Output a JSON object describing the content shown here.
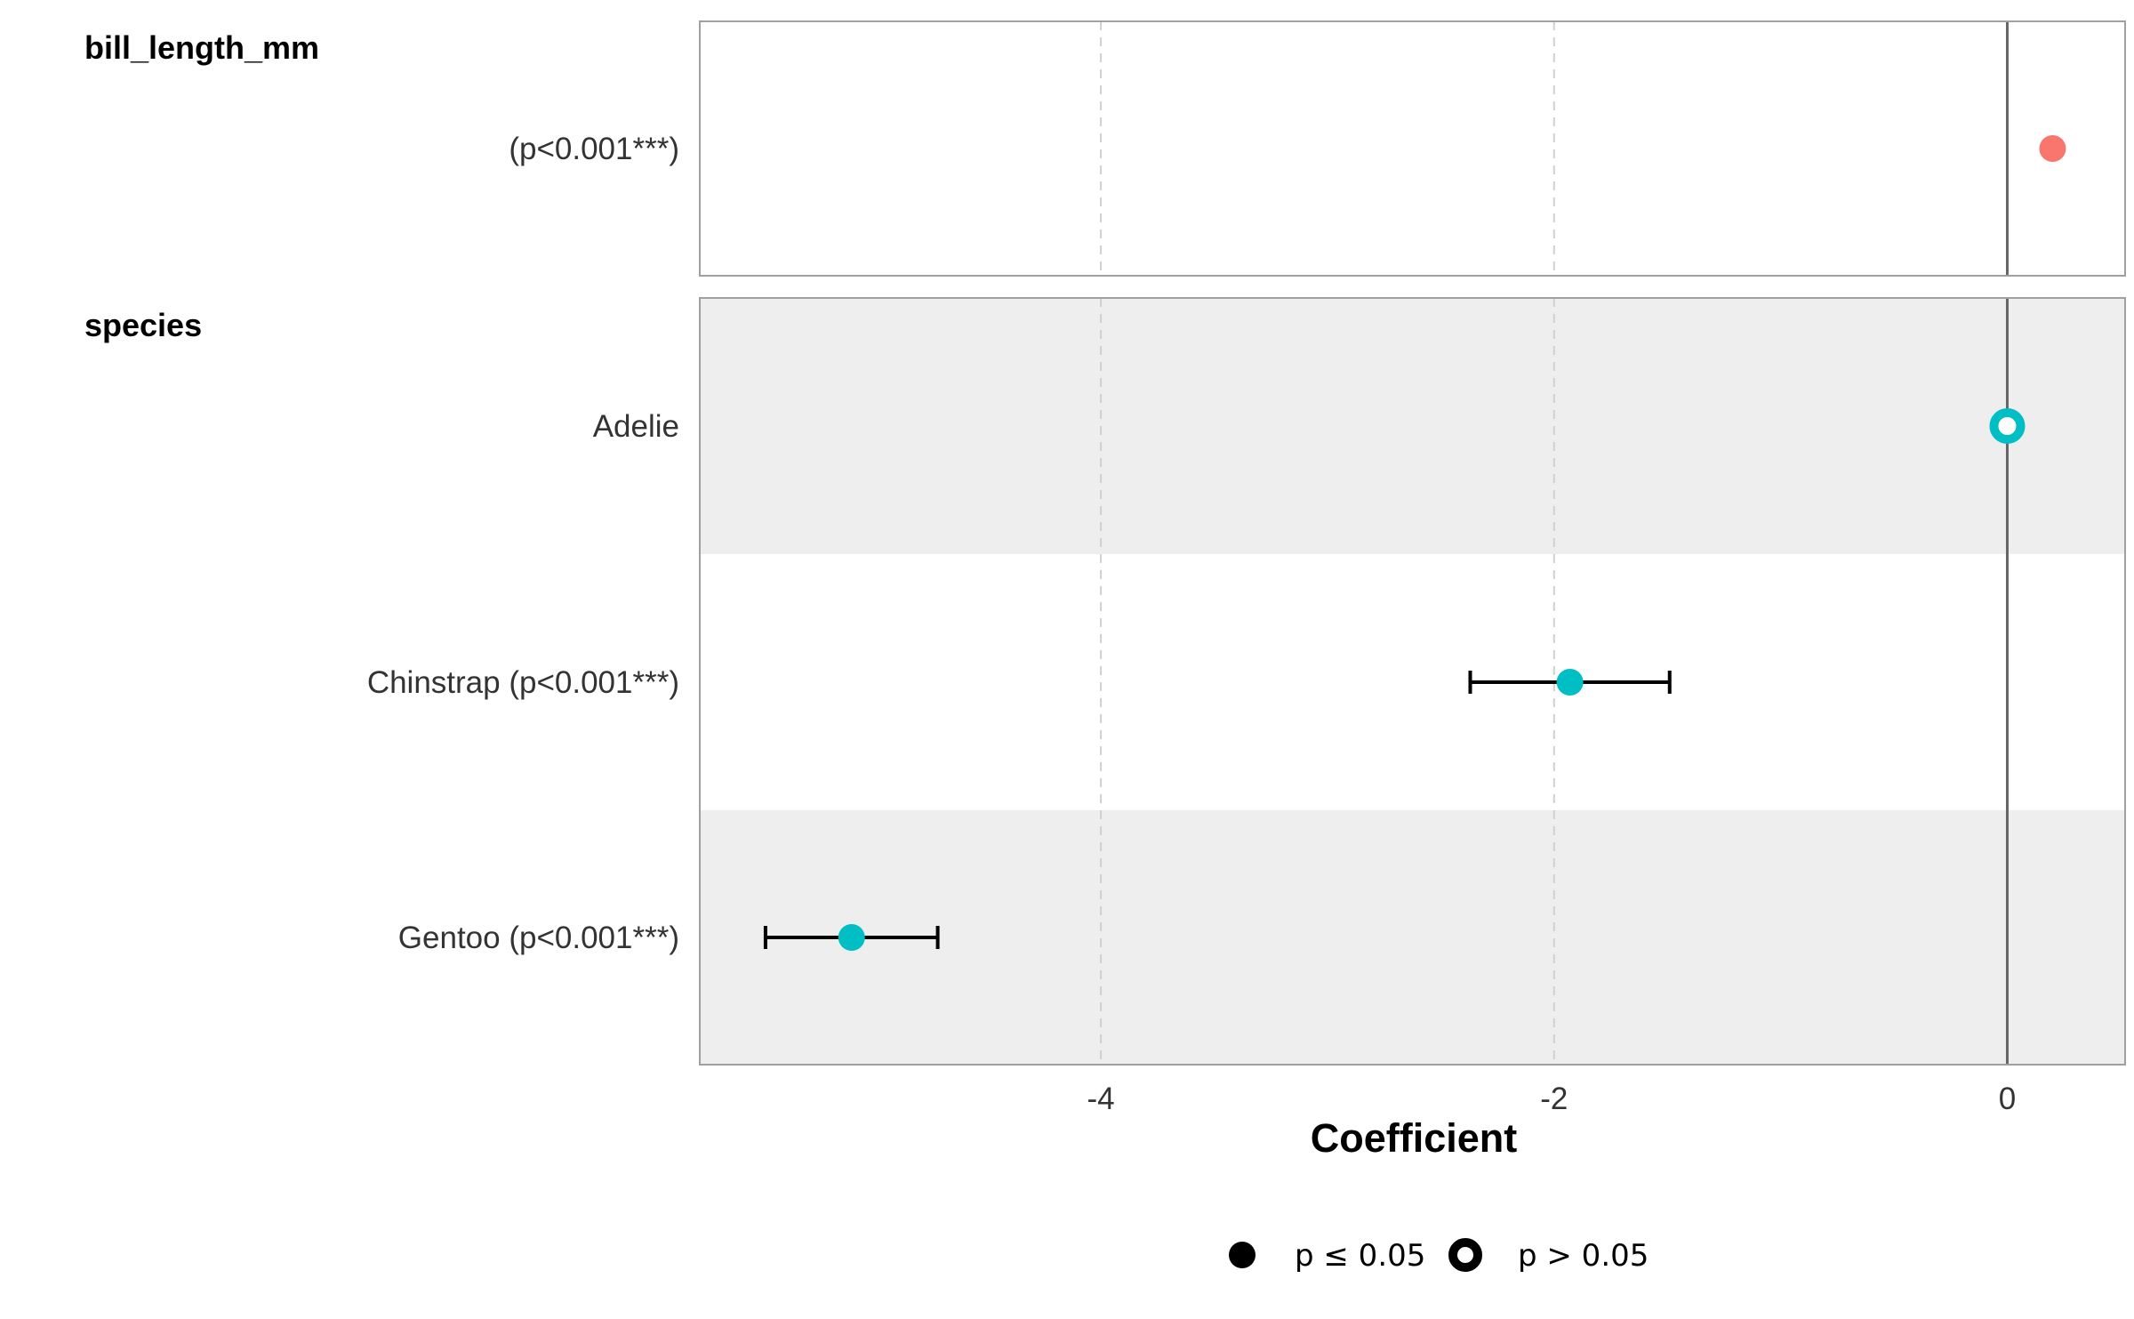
{
  "chart_data": {
    "type": "scatter",
    "subtype": "coefficient-plot",
    "xlabel": "Coefficient",
    "xlim": [
      -5.77,
      0.52
    ],
    "x_ticks": [
      {
        "value": -4,
        "label": "-4"
      },
      {
        "value": -2,
        "label": "-2"
      },
      {
        "value": 0,
        "label": "0"
      }
    ],
    "reference_line": 0,
    "grid": "dashed vertical at major ticks",
    "groups": [
      {
        "name": "bill_length_mm",
        "color": "#F8766D",
        "background": "#ffffff",
        "terms": [
          {
            "label": "(p<0.001***)",
            "estimate": 0.2,
            "ci_low": 0.18,
            "ci_high": 0.22,
            "significant": true,
            "shaded": false
          }
        ]
      },
      {
        "name": "species",
        "color": "#00BFC4",
        "terms": [
          {
            "label": "Adelie",
            "estimate": 0.0,
            "ci_low": null,
            "ci_high": null,
            "significant": false,
            "shaded": true
          },
          {
            "label": "Chinstrap (p<0.001***)",
            "estimate": -1.93,
            "ci_low": -2.37,
            "ci_high": -1.49,
            "significant": true,
            "shaded": false
          },
          {
            "label": "Gentoo (p<0.001***)",
            "estimate": -5.1,
            "ci_low": -5.48,
            "ci_high": -4.72,
            "significant": true,
            "shaded": true
          }
        ]
      }
    ],
    "legend": {
      "position": "bottom",
      "items": [
        {
          "label": "p ≤ 0.05",
          "marker": "filled"
        },
        {
          "label": "p > 0.05",
          "marker": "hollow"
        }
      ]
    }
  }
}
